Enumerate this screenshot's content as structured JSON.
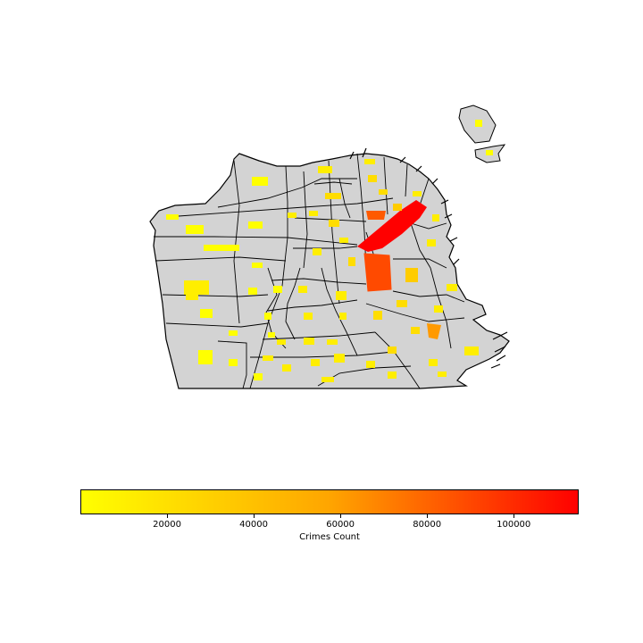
{
  "chart_data": {
    "type": "choropleth",
    "colorbar": {
      "label": "Crimes Count",
      "range": [
        0,
        115000
      ],
      "ticks": [
        20000,
        40000,
        60000,
        80000,
        100000
      ],
      "tick_labels": [
        "20000",
        "40000",
        "60000",
        "80000",
        "100000"
      ],
      "colors": [
        "#ffff00",
        "#ffa500",
        "#ff0000"
      ]
    },
    "colors": {
      "land": "#d3d3d3",
      "border": "#000000",
      "low": "#ffff00",
      "high": "#ff0000"
    }
  }
}
